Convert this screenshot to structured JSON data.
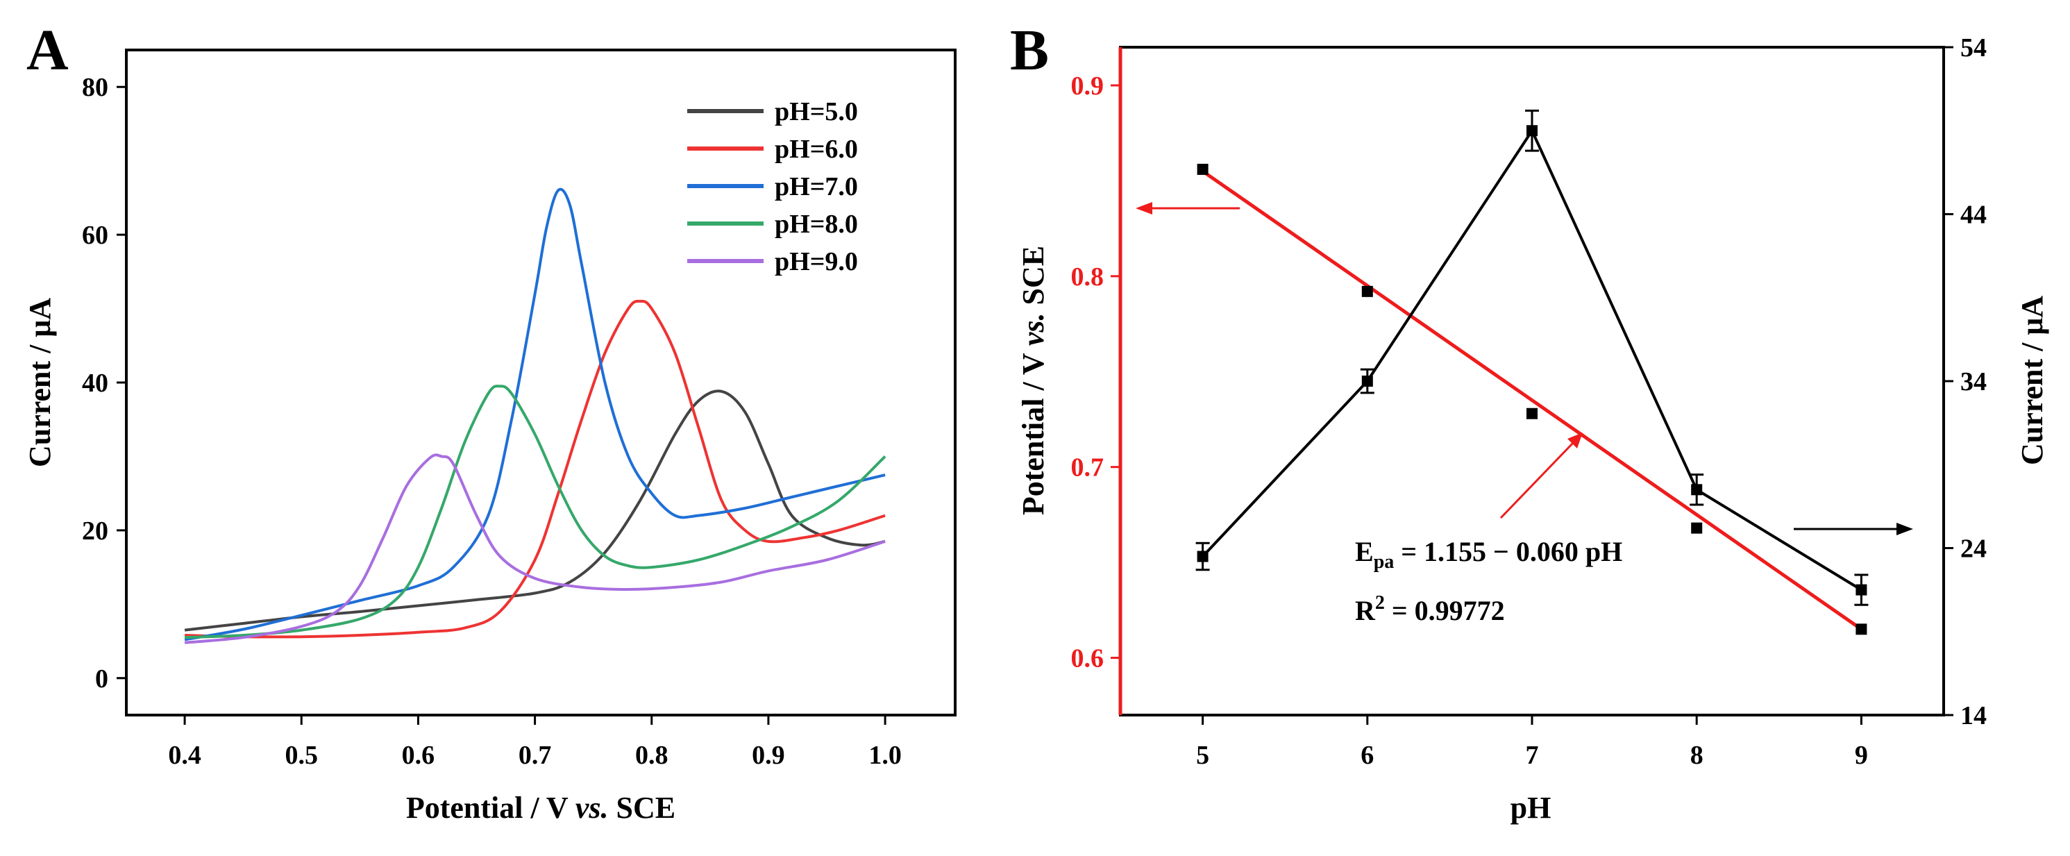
{
  "chart_data": [
    {
      "panel_label": "A",
      "type": "line",
      "xlabel_main": "Potential / V ",
      "xlabel_italic": "vs.",
      "xlabel_tail": " SCE",
      "ylabel": "Current / μA",
      "xlim": [
        0.35,
        1.06
      ],
      "ylim": [
        -5,
        85
      ],
      "xticks": [
        "0.4",
        "0.5",
        "0.6",
        "0.7",
        "0.8",
        "0.9",
        "1.0"
      ],
      "yticks": [
        "0",
        "20",
        "40",
        "60",
        "80"
      ],
      "series": [
        {
          "name": "pH=5.0",
          "color": "#444444",
          "x": [
            0.4,
            0.45,
            0.5,
            0.55,
            0.6,
            0.65,
            0.7,
            0.73,
            0.76,
            0.79,
            0.82,
            0.84,
            0.86,
            0.88,
            0.9,
            0.92,
            0.95,
            0.98,
            1.0
          ],
          "y": [
            6.5,
            7.4,
            8.3,
            9.0,
            9.8,
            10.6,
            11.5,
            13.0,
            17.0,
            24.0,
            33.0,
            37.5,
            38.8,
            36.0,
            29.0,
            22.0,
            19.0,
            18.0,
            18.5
          ]
        },
        {
          "name": "pH=6.0",
          "color": "#ee3333",
          "x": [
            0.4,
            0.45,
            0.5,
            0.55,
            0.6,
            0.64,
            0.67,
            0.7,
            0.72,
            0.74,
            0.76,
            0.78,
            0.79,
            0.8,
            0.82,
            0.84,
            0.86,
            0.88,
            0.9,
            0.93,
            0.96,
            1.0
          ],
          "y": [
            5.8,
            5.6,
            5.6,
            5.8,
            6.2,
            6.8,
            9.0,
            16.0,
            25.0,
            35.0,
            44.0,
            50.0,
            51.0,
            50.0,
            44.0,
            34.0,
            24.0,
            20.0,
            18.5,
            19.0,
            20.0,
            22.0
          ]
        },
        {
          "name": "pH=7.0",
          "color": "#1f6fd6",
          "x": [
            0.4,
            0.45,
            0.5,
            0.55,
            0.6,
            0.63,
            0.66,
            0.68,
            0.7,
            0.71,
            0.72,
            0.73,
            0.74,
            0.76,
            0.78,
            0.8,
            0.82,
            0.84,
            0.88,
            0.92,
            0.96,
            1.0
          ],
          "y": [
            5.2,
            6.6,
            8.5,
            10.5,
            12.5,
            15.0,
            22.0,
            35.0,
            52.0,
            61.0,
            66.0,
            64.0,
            56.0,
            40.0,
            30.0,
            25.0,
            22.0,
            22.0,
            23.0,
            24.5,
            26.0,
            27.5
          ]
        },
        {
          "name": "pH=8.0",
          "color": "#35a86a",
          "x": [
            0.4,
            0.45,
            0.5,
            0.55,
            0.58,
            0.6,
            0.62,
            0.64,
            0.66,
            0.67,
            0.68,
            0.7,
            0.72,
            0.74,
            0.76,
            0.78,
            0.8,
            0.84,
            0.88,
            0.92,
            0.96,
            1.0
          ],
          "y": [
            5.5,
            5.8,
            6.5,
            8.0,
            10.5,
            15.0,
            23.0,
            32.0,
            38.5,
            39.5,
            38.5,
            33.0,
            26.0,
            20.0,
            16.5,
            15.2,
            15.0,
            16.0,
            18.0,
            20.5,
            24.0,
            30.0
          ]
        },
        {
          "name": "pH=9.0",
          "color": "#a86ee0",
          "x": [
            0.4,
            0.45,
            0.5,
            0.53,
            0.55,
            0.57,
            0.59,
            0.61,
            0.62,
            0.63,
            0.65,
            0.67,
            0.7,
            0.74,
            0.78,
            0.82,
            0.86,
            0.9,
            0.95,
            1.0
          ],
          "y": [
            4.8,
            5.5,
            7.0,
            9.0,
            12.5,
            19.0,
            26.0,
            29.8,
            30.0,
            29.0,
            22.0,
            16.5,
            13.5,
            12.3,
            12.0,
            12.3,
            13.0,
            14.5,
            16.0,
            18.5
          ]
        }
      ]
    },
    {
      "panel_label": "B",
      "type": "line",
      "xlabel": "pH",
      "ylabel_left_main": "Potential / V ",
      "ylabel_left_italic": "vs.",
      "ylabel_left_tail": " SCE",
      "ylabel_right": "Current / μA",
      "xlim": [
        4.5,
        9.5
      ],
      "ylim_left": [
        0.57,
        0.92
      ],
      "ylim_right": [
        14,
        54
      ],
      "xticks": [
        "5",
        "6",
        "7",
        "8",
        "9"
      ],
      "yticks_left": [
        "0.6",
        "0.7",
        "0.8",
        "0.9"
      ],
      "yticks_right": [
        "14",
        "24",
        "34",
        "44",
        "54"
      ],
      "potential": {
        "color": "#ee1c1c",
        "x": [
          5,
          6,
          7,
          8,
          9
        ],
        "y": [
          0.856,
          0.792,
          0.728,
          0.668,
          0.615
        ]
      },
      "fit": {
        "color": "#ee1c1c",
        "x": [
          5,
          9
        ],
        "y": [
          0.855,
          0.615
        ]
      },
      "current": {
        "color": "#000000",
        "x": [
          5,
          6,
          7,
          8,
          9
        ],
        "y": [
          23.5,
          34.0,
          49.0,
          27.5,
          21.5
        ],
        "err": [
          0.8,
          0.7,
          1.2,
          0.9,
          0.9
        ]
      },
      "equation_main": "E",
      "equation_sub": "pa",
      "equation_tail": " = 1.155 − 0.060 pH",
      "r2_main": "R",
      "r2_sup": "2",
      "r2_tail": " = 0.99772"
    }
  ]
}
